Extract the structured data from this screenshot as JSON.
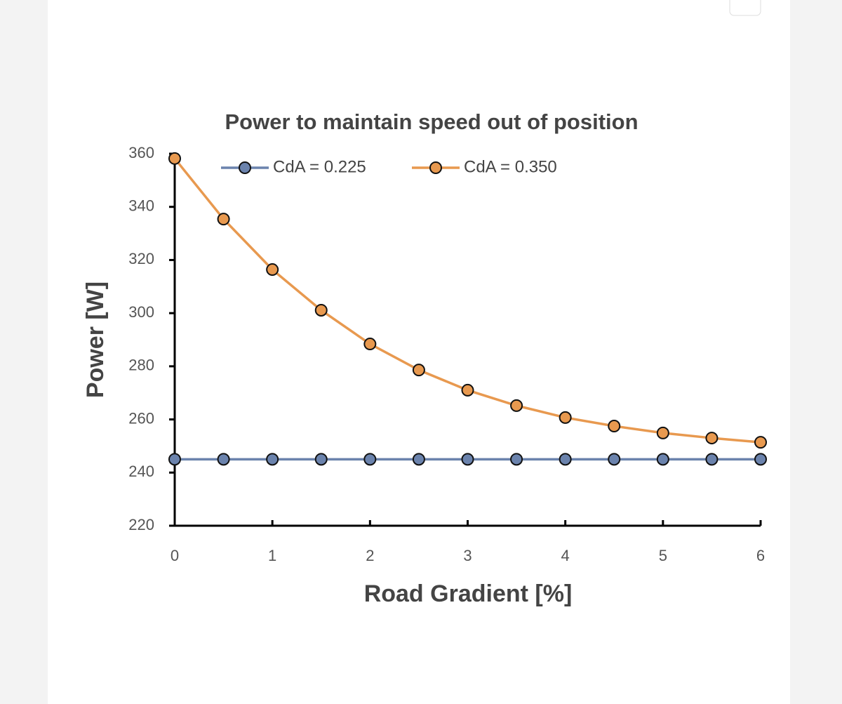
{
  "chart_data": {
    "type": "line",
    "title": "Power to maintain speed out of position",
    "xlabel": "Road Gradient [%]",
    "ylabel": "Power [W]",
    "x": [
      0,
      0.5,
      1,
      1.5,
      2,
      2.5,
      3,
      3.5,
      4,
      4.5,
      5,
      5.5,
      6
    ],
    "series": [
      {
        "name": "CdA = 0.225",
        "color": "#6b83ad",
        "values": [
          245,
          245,
          245,
          245,
          245,
          245,
          245,
          245,
          245,
          245,
          245,
          245,
          245
        ]
      },
      {
        "name": "CdA = 0.350",
        "color": "#e8994f",
        "values": [
          358.2,
          335.4,
          316.4,
          301.1,
          288.4,
          278.6,
          271,
          265.2,
          260.7,
          257.5,
          254.9,
          253,
          251.4
        ]
      }
    ],
    "xlim": [
      0,
      6
    ],
    "xticks": [
      0,
      1,
      2,
      3,
      4,
      5,
      6
    ],
    "ylim": [
      220,
      360
    ],
    "yticks": [
      220,
      240,
      260,
      280,
      300,
      320,
      340,
      360
    ],
    "legend": "top"
  }
}
